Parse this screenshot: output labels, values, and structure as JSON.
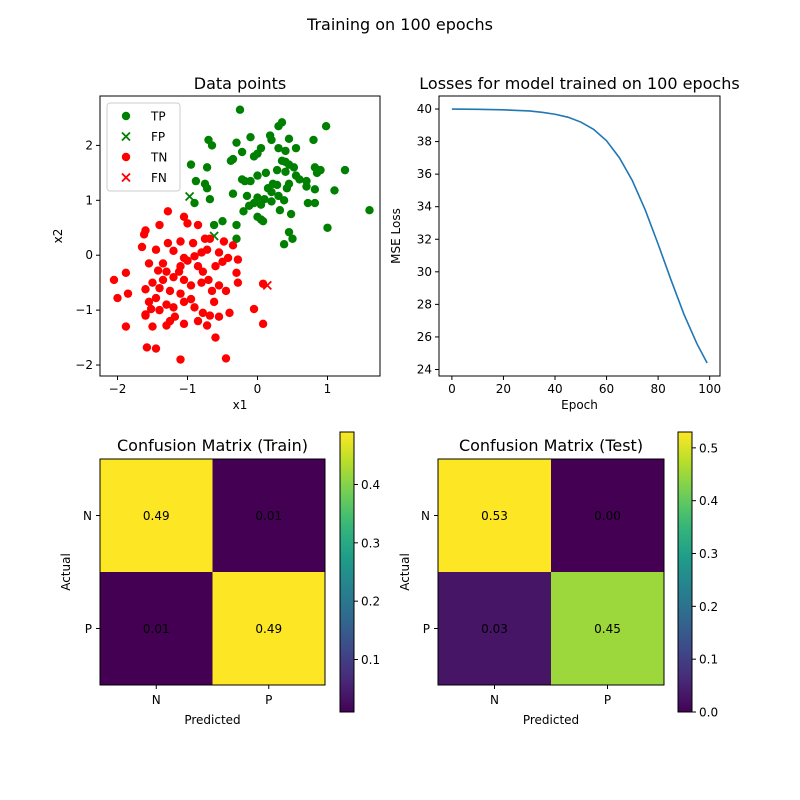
{
  "figure": {
    "suptitle": "Training on 100 epochs"
  },
  "colors": {
    "tp": "#008000",
    "tn": "#ff0000",
    "line": "#1f77b4",
    "viridis": [
      "#440154",
      "#482878",
      "#3e4989",
      "#31688e",
      "#26828e",
      "#1f9e89",
      "#35b779",
      "#6ece58",
      "#b5de2b",
      "#fde725"
    ]
  },
  "chart_data": [
    {
      "id": "scatter",
      "type": "scatter",
      "title": "Data points",
      "xlabel": "x1",
      "ylabel": "x2",
      "xlim": [
        -2.25,
        1.75
      ],
      "ylim": [
        -2.2,
        2.9
      ],
      "xticks": [
        -2,
        -1,
        0,
        1
      ],
      "yticks": [
        -2,
        -1,
        0,
        1,
        2
      ],
      "legend": {
        "placement": "top-left",
        "entries": [
          "TP",
          "FP",
          "TN",
          "FN"
        ]
      },
      "series": [
        {
          "name": "TP",
          "marker": "circle",
          "color": "green",
          "points": [
            [
              -0.25,
              2.65
            ],
            [
              0.35,
              2.42
            ],
            [
              0.3,
              2.35
            ],
            [
              -0.7,
              2.1
            ],
            [
              -0.65,
              2.0
            ],
            [
              -0.1,
              2.15
            ],
            [
              0.18,
              2.18
            ],
            [
              0.2,
              2.1
            ],
            [
              -0.3,
              2.05
            ],
            [
              0.45,
              2.12
            ],
            [
              0.8,
              2.1
            ],
            [
              0.98,
              2.35
            ],
            [
              0.3,
              1.95
            ],
            [
              0.4,
              1.9
            ],
            [
              0.05,
              1.95
            ],
            [
              0.0,
              1.85
            ],
            [
              -0.05,
              1.8
            ],
            [
              0.55,
              1.95
            ],
            [
              -0.22,
              1.88
            ],
            [
              -0.35,
              1.75
            ],
            [
              -0.38,
              1.72
            ],
            [
              -0.95,
              1.65
            ],
            [
              0.35,
              1.72
            ],
            [
              0.4,
              1.7
            ],
            [
              0.45,
              1.65
            ],
            [
              0.52,
              1.6
            ],
            [
              0.82,
              1.6
            ],
            [
              0.9,
              1.55
            ],
            [
              0.85,
              1.5
            ],
            [
              1.25,
              1.55
            ],
            [
              -0.72,
              1.6
            ],
            [
              0.28,
              1.55
            ],
            [
              0.4,
              1.52
            ],
            [
              0.12,
              1.5
            ],
            [
              0.0,
              1.45
            ],
            [
              0.55,
              1.45
            ],
            [
              0.6,
              1.38
            ],
            [
              -0.22,
              1.38
            ],
            [
              -0.18,
              1.35
            ],
            [
              -0.1,
              1.35
            ],
            [
              0.22,
              1.3
            ],
            [
              0.28,
              1.28
            ],
            [
              0.45,
              1.3
            ],
            [
              0.42,
              1.22
            ],
            [
              0.7,
              1.35
            ],
            [
              0.7,
              1.25
            ],
            [
              1.1,
              1.18
            ],
            [
              0.82,
              1.2
            ],
            [
              -0.88,
              1.35
            ],
            [
              -0.75,
              1.3
            ],
            [
              -0.72,
              1.22
            ],
            [
              0.15,
              1.22
            ],
            [
              0.2,
              1.15
            ],
            [
              0.3,
              1.08
            ],
            [
              -0.35,
              1.12
            ],
            [
              -0.15,
              1.08
            ],
            [
              0.0,
              1.05
            ],
            [
              0.1,
              1.02
            ],
            [
              -0.68,
              1.02
            ],
            [
              -0.05,
              0.95
            ],
            [
              0.05,
              0.92
            ],
            [
              0.2,
              0.98
            ],
            [
              0.38,
              1.0
            ],
            [
              0.72,
              0.95
            ],
            [
              -0.9,
              0.95
            ],
            [
              -0.12,
              0.9
            ],
            [
              -0.2,
              0.8
            ],
            [
              0.32,
              0.82
            ],
            [
              0.48,
              0.75
            ],
            [
              0.0,
              0.7
            ],
            [
              0.05,
              0.65
            ],
            [
              -0.5,
              0.62
            ],
            [
              0.08,
              0.62
            ],
            [
              -0.62,
              0.55
            ],
            [
              -0.3,
              0.55
            ],
            [
              1.0,
              0.5
            ],
            [
              0.45,
              0.42
            ],
            [
              0.5,
              0.3
            ],
            [
              -0.3,
              0.3
            ],
            [
              0.38,
              0.2
            ],
            [
              1.6,
              0.82
            ],
            [
              0.82,
              0.95
            ]
          ]
        },
        {
          "name": "FP",
          "marker": "x",
          "color": "green",
          "points": [
            [
              -0.97,
              1.07
            ],
            [
              -0.62,
              0.35
            ]
          ]
        },
        {
          "name": "TN",
          "marker": "circle",
          "color": "red",
          "points": [
            [
              -1.28,
              0.8
            ],
            [
              -1.05,
              0.7
            ],
            [
              -1.0,
              0.58
            ],
            [
              -0.85,
              0.55
            ],
            [
              -1.4,
              0.55
            ],
            [
              -1.6,
              0.45
            ],
            [
              -1.62,
              0.38
            ],
            [
              -0.75,
              0.3
            ],
            [
              -0.68,
              0.3
            ],
            [
              -0.92,
              0.22
            ],
            [
              -1.1,
              0.25
            ],
            [
              -1.28,
              0.22
            ],
            [
              -0.48,
              0.25
            ],
            [
              -0.35,
              0.18
            ],
            [
              -0.72,
              0.1
            ],
            [
              -0.8,
              0.05
            ],
            [
              -0.9,
              -0.02
            ],
            [
              -1.05,
              -0.05
            ],
            [
              -1.2,
              0.08
            ],
            [
              -1.45,
              0.1
            ],
            [
              -1.65,
              0.15
            ],
            [
              -0.55,
              0.05
            ],
            [
              -0.42,
              -0.05
            ],
            [
              -0.28,
              -0.08
            ],
            [
              -1.0,
              -0.1
            ],
            [
              -1.1,
              -0.2
            ],
            [
              -0.85,
              -0.2
            ],
            [
              -0.78,
              -0.3
            ],
            [
              -0.6,
              -0.2
            ],
            [
              -0.5,
              -0.12
            ],
            [
              -1.3,
              -0.3
            ],
            [
              -1.42,
              -0.28
            ],
            [
              -1.55,
              -0.15
            ],
            [
              -1.88,
              -0.32
            ],
            [
              -2.05,
              -0.45
            ],
            [
              -1.85,
              -0.7
            ],
            [
              -2.0,
              -0.78
            ],
            [
              -1.6,
              -0.62
            ],
            [
              -1.5,
              -0.5
            ],
            [
              -1.35,
              -0.45
            ],
            [
              -1.2,
              -0.4
            ],
            [
              -1.05,
              -0.45
            ],
            [
              -0.95,
              -0.55
            ],
            [
              -0.8,
              -0.5
            ],
            [
              -0.7,
              -0.45
            ],
            [
              -0.55,
              -0.55
            ],
            [
              -0.45,
              -0.65
            ],
            [
              -0.3,
              -0.32
            ],
            [
              -0.28,
              -0.5
            ],
            [
              -1.4,
              -0.6
            ],
            [
              -1.25,
              -0.65
            ],
            [
              -1.1,
              -0.7
            ],
            [
              -1.45,
              -0.78
            ],
            [
              -1.55,
              -0.85
            ],
            [
              -1.3,
              -0.9
            ],
            [
              -1.05,
              -0.85
            ],
            [
              -0.95,
              -0.8
            ],
            [
              -1.2,
              -0.95
            ],
            [
              -1.4,
              -1.0
            ],
            [
              -1.52,
              -0.98
            ],
            [
              -0.78,
              -1.05
            ],
            [
              -0.68,
              -1.1
            ],
            [
              -0.55,
              -1.12
            ],
            [
              -0.4,
              -1.05
            ],
            [
              -0.05,
              -0.98
            ],
            [
              -1.18,
              -1.12
            ],
            [
              -1.25,
              -1.2
            ],
            [
              -1.05,
              -1.25
            ],
            [
              -1.3,
              -1.28
            ],
            [
              -1.5,
              -1.3
            ],
            [
              -1.88,
              -1.3
            ],
            [
              -1.6,
              -1.08
            ],
            [
              -0.85,
              -1.2
            ],
            [
              -0.72,
              -1.28
            ],
            [
              -0.6,
              -1.5
            ],
            [
              0.08,
              -1.25
            ],
            [
              0.08,
              -0.52
            ],
            [
              -1.58,
              -1.68
            ],
            [
              -1.45,
              -1.7
            ],
            [
              -1.1,
              -1.9
            ],
            [
              -0.45,
              -1.88
            ],
            [
              -0.65,
              -0.65
            ],
            [
              -1.12,
              -0.3
            ],
            [
              -1.6,
              -1.1
            ],
            [
              -0.9,
              -0.95
            ],
            [
              -0.62,
              -0.85
            ],
            [
              -1.35,
              -0.15
            ]
          ]
        },
        {
          "name": "FN",
          "marker": "x",
          "color": "red",
          "points": [
            [
              0.14,
              -0.55
            ]
          ]
        }
      ]
    },
    {
      "id": "loss",
      "type": "line",
      "title": "Losses for model trained on 100 epochs",
      "xlabel": "Epoch",
      "ylabel": "MSE Loss",
      "xlim": [
        -5,
        104
      ],
      "ylim": [
        23.6,
        40.8
      ],
      "xticks": [
        0,
        20,
        40,
        60,
        80,
        100
      ],
      "yticks": [
        24,
        26,
        28,
        30,
        32,
        34,
        36,
        38,
        40
      ],
      "series": [
        {
          "name": "",
          "color": "#1f77b4",
          "x": [
            0,
            10,
            20,
            30,
            35,
            40,
            45,
            50,
            55,
            60,
            65,
            70,
            75,
            80,
            85,
            90,
            95,
            99
          ],
          "y": [
            40.0,
            39.98,
            39.95,
            39.88,
            39.8,
            39.68,
            39.5,
            39.2,
            38.75,
            38.05,
            37.0,
            35.6,
            33.8,
            31.7,
            29.5,
            27.4,
            25.6,
            24.4
          ]
        }
      ]
    },
    {
      "id": "cm_train",
      "type": "heatmap",
      "title": "Confusion Matrix (Train)",
      "xlabel": "Predicted",
      "ylabel": "Actual",
      "xticklabels": [
        "N",
        "P"
      ],
      "yticklabels": [
        "N",
        "P"
      ],
      "values": [
        [
          0.49,
          0.01
        ],
        [
          0.01,
          0.49
        ]
      ],
      "labels": [
        [
          "0.49",
          "0.01"
        ],
        [
          "0.01",
          "0.49"
        ]
      ],
      "vmin": 0.01,
      "vmax": 0.49,
      "colorbar_ticks": [
        0.1,
        0.2,
        0.3,
        0.4
      ],
      "colorbar_ticklabels": [
        "0.1",
        "0.2",
        "0.3",
        "0.4"
      ]
    },
    {
      "id": "cm_test",
      "type": "heatmap",
      "title": "Confusion Matrix (Test)",
      "xlabel": "Predicted",
      "ylabel": "Actual",
      "xticklabels": [
        "N",
        "P"
      ],
      "yticklabels": [
        "N",
        "P"
      ],
      "values": [
        [
          0.53,
          0.0
        ],
        [
          0.03,
          0.45
        ]
      ],
      "labels": [
        [
          "0.53",
          "0.00"
        ],
        [
          "0.03",
          "0.45"
        ]
      ],
      "vmin": 0.0,
      "vmax": 0.53,
      "colorbar_ticks": [
        0.0,
        0.1,
        0.2,
        0.3,
        0.4,
        0.5
      ],
      "colorbar_ticklabels": [
        "0.0",
        "0.1",
        "0.2",
        "0.3",
        "0.4",
        "0.5"
      ]
    }
  ]
}
